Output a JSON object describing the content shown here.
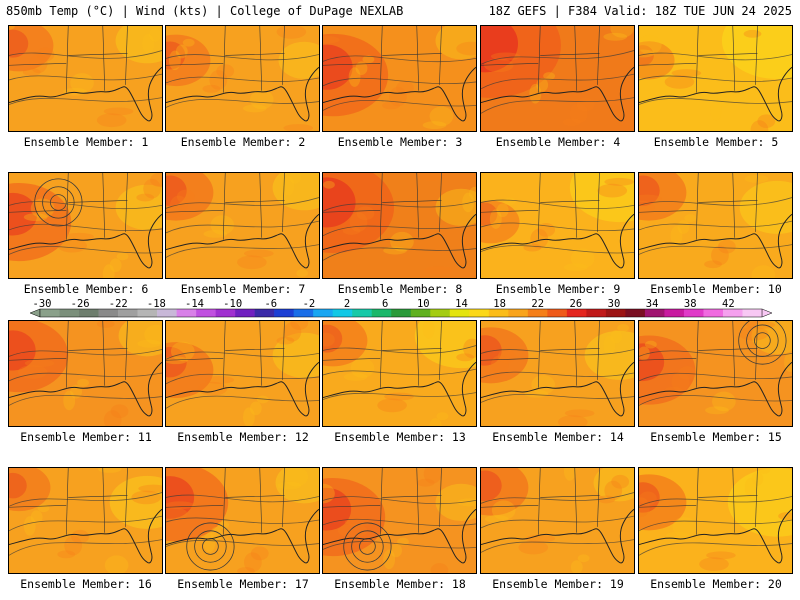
{
  "header": {
    "left": "850mb Temp (°C) | Wind (kts) | College of DuPage NEXLAB",
    "right": "18Z GEFS | F384 Valid: 18Z TUE JUN 24 2025"
  },
  "members": [
    {
      "label": "Ensemble Member: 1",
      "base": "#f7a11f",
      "warm": 0.25,
      "yellow": 0.2
    },
    {
      "label": "Ensemble Member: 2",
      "base": "#f7a11f",
      "warm": 0.25,
      "yellow": 0.1
    },
    {
      "label": "Ensemble Member: 3",
      "base": "#f5901c",
      "warm": 0.6,
      "yellow": 0.1
    },
    {
      "label": "Ensemble Member: 4",
      "base": "#f07a1a",
      "warm": 0.85,
      "yellow": 0.0
    },
    {
      "label": "Ensemble Member: 5",
      "base": "#fbbd1a",
      "warm": 0.1,
      "yellow": 0.6
    },
    {
      "label": "Ensemble Member: 6",
      "base": "#f7a11f",
      "warm": 0.55,
      "yellow": 0.2
    },
    {
      "label": "Ensemble Member: 7",
      "base": "#f7a11f",
      "warm": 0.3,
      "yellow": 0.2
    },
    {
      "label": "Ensemble Member: 8",
      "base": "#f0801a",
      "warm": 0.7,
      "yellow": 0.1
    },
    {
      "label": "Ensemble Member: 9",
      "base": "#fbb21c",
      "warm": 0.15,
      "yellow": 0.5
    },
    {
      "label": "Ensemble Member: 10",
      "base": "#f9aa1d",
      "warm": 0.3,
      "yellow": 0.3
    },
    {
      "label": "Ensemble Member: 11",
      "base": "#f59320",
      "warm": 0.5,
      "yellow": 0.15
    },
    {
      "label": "Ensemble Member: 12",
      "base": "#f7a11f",
      "warm": 0.3,
      "yellow": 0.2
    },
    {
      "label": "Ensemble Member: 13",
      "base": "#f9aa1d",
      "warm": 0.25,
      "yellow": 0.45
    },
    {
      "label": "Ensemble Member: 14",
      "base": "#f7a11f",
      "warm": 0.3,
      "yellow": 0.25
    },
    {
      "label": "Ensemble Member: 15",
      "base": "#f59320",
      "warm": 0.45,
      "yellow": 0.1
    },
    {
      "label": "Ensemble Member: 16",
      "base": "#f7a11f",
      "warm": 0.2,
      "yellow": 0.3
    },
    {
      "label": "Ensemble Member: 17",
      "base": "#f7a11f",
      "warm": 0.55,
      "yellow": 0.15
    },
    {
      "label": "Ensemble Member: 18",
      "base": "#f59320",
      "warm": 0.55,
      "yellow": 0.1
    },
    {
      "label": "Ensemble Member: 19",
      "base": "#f7a11f",
      "warm": 0.3,
      "yellow": 0.1
    },
    {
      "label": "Ensemble Member: 20",
      "base": "#fbb21c",
      "warm": 0.3,
      "yellow": 0.5
    }
  ],
  "colorbar": {
    "labels": [
      "-30",
      "-26",
      "-22",
      "-18",
      "-14",
      "-10",
      "-6",
      "-2",
      "2",
      "6",
      "10",
      "14",
      "18",
      "22",
      "26",
      "30",
      "34",
      "38",
      "42"
    ],
    "colors": [
      "#8aa08a",
      "#7b8f7b",
      "#6e7e6e",
      "#8a8a8a",
      "#9f9f9f",
      "#b5b5b5",
      "#c8b8d8",
      "#d880e8",
      "#c050e0",
      "#a030d0",
      "#7020c0",
      "#3a2aa8",
      "#1c3fd4",
      "#1a6ee8",
      "#19a6f2",
      "#12c8e6",
      "#17c9a8",
      "#1bb76a",
      "#2a9a3a",
      "#5fb01f",
      "#a4cc12",
      "#e4e40f",
      "#fbd81a",
      "#fbbd1a",
      "#f9a41c",
      "#f57f1a",
      "#ef5a1a",
      "#e4261f",
      "#c01a1a",
      "#9c1414",
      "#7a0f22",
      "#a01470",
      "#c81aa0",
      "#e03ac8",
      "#f06ae0",
      "#f5a0ee",
      "#f8c8f4"
    ]
  }
}
